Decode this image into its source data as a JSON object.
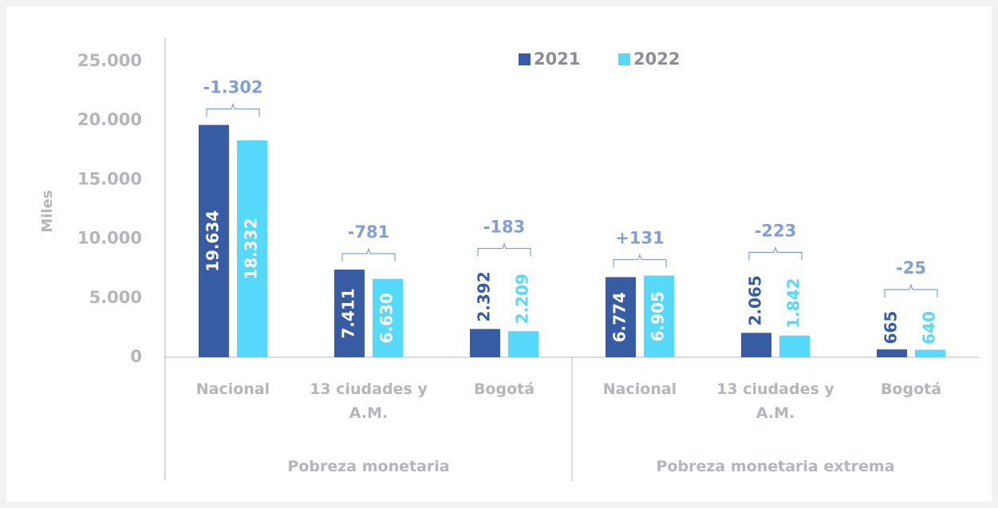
{
  "chart_data": {
    "type": "bar",
    "y_axis_label": "Miles",
    "categories": [
      "Nacional",
      "13 ciudades y A.M.",
      "Bogotá",
      "Nacional",
      "13 ciudades y A.M.",
      "Bogotá"
    ],
    "groups": [
      "Pobreza monetaria",
      "Pobreza monetaria extrema"
    ],
    "series": [
      {
        "name": "2021",
        "color": "#375ca3",
        "values": [
          19634,
          7411,
          2392,
          6774,
          2065,
          665
        ],
        "value_labels": [
          "19.634",
          "7.411",
          "2.392",
          "6.774",
          "2.065",
          "665"
        ]
      },
      {
        "name": "2022",
        "color": "#57d9fb",
        "values": [
          18332,
          6630,
          2209,
          6905,
          1842,
          640
        ],
        "value_labels": [
          "18.332",
          "6.630",
          "2.209",
          "6.905",
          "1.842",
          "640"
        ]
      }
    ],
    "annotations": [
      "-1.302",
      "-781",
      "-183",
      "+131",
      "-223",
      "-25"
    ],
    "ylim": [
      0,
      25000
    ],
    "yticks": [
      0,
      {
        "value": 5000,
        "label": "5.000"
      },
      {
        "value": 10000,
        "label": "10.000"
      },
      {
        "value": 15000,
        "label": "15.000"
      },
      {
        "value": 20000,
        "label": "20.000"
      },
      {
        "value": 25000,
        "label": "25.000"
      }
    ],
    "legend": "top"
  }
}
